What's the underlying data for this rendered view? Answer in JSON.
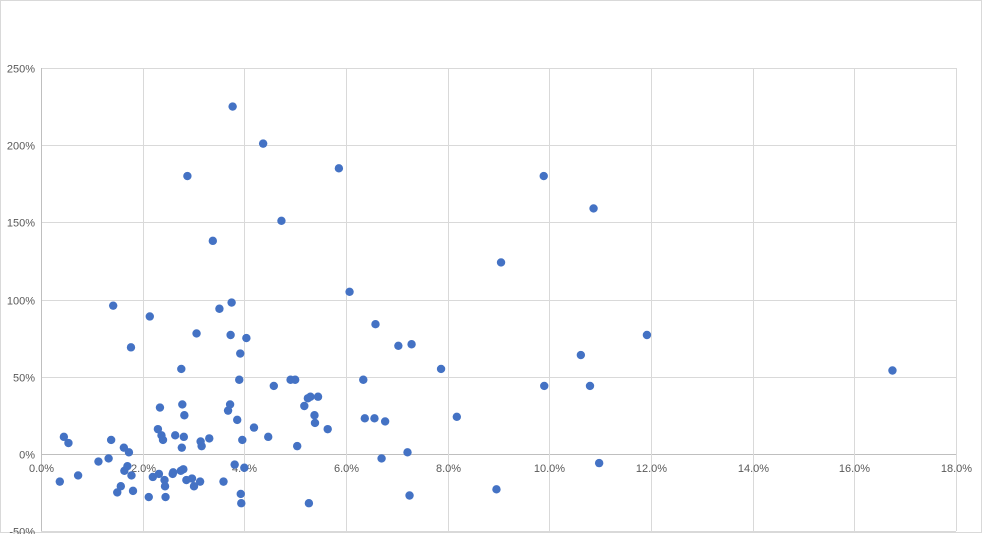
{
  "chart_data": {
    "type": "scatter",
    "title": "",
    "xlabel": "",
    "ylabel": "",
    "xlim": [
      0,
      0.18
    ],
    "ylim": [
      -0.5,
      2.5
    ],
    "x_ticks": [
      0,
      0.02,
      0.04,
      0.06,
      0.08,
      0.1,
      0.12,
      0.14,
      0.16,
      0.18
    ],
    "x_tick_labels": [
      "0.0%",
      "2.0%",
      "4.0%",
      "6.0%",
      "8.0%",
      "10.0%",
      "12.0%",
      "14.0%",
      "16.0%",
      "18.0%"
    ],
    "y_ticks": [
      -0.5,
      0,
      0.5,
      1.0,
      1.5,
      2.0,
      2.5
    ],
    "y_tick_labels": [
      "-50%",
      "0%",
      "50%",
      "100%",
      "150%",
      "200%",
      "250%"
    ],
    "grid": true,
    "legend": "none",
    "marker_color": "#4472c4",
    "series": [
      {
        "points": [
          [
            0.0037,
            -0.18
          ],
          [
            0.0045,
            0.11
          ],
          [
            0.0054,
            0.07
          ],
          [
            0.0073,
            -0.14
          ],
          [
            0.0113,
            -0.05
          ],
          [
            0.0133,
            -0.03
          ],
          [
            0.0138,
            0.09
          ],
          [
            0.0142,
            0.96
          ],
          [
            0.015,
            -0.25
          ],
          [
            0.0157,
            -0.21
          ],
          [
            0.0163,
            0.04
          ],
          [
            0.0164,
            -0.11
          ],
          [
            0.017,
            -0.08
          ],
          [
            0.0173,
            0.01
          ],
          [
            0.0177,
            0.69
          ],
          [
            0.0178,
            -0.14
          ],
          [
            0.0181,
            -0.24
          ],
          [
            0.0212,
            -0.28
          ],
          [
            0.0214,
            0.89
          ],
          [
            0.022,
            -0.15
          ],
          [
            0.023,
            0.16
          ],
          [
            0.0232,
            -0.13
          ],
          [
            0.0234,
            0.3
          ],
          [
            0.0237,
            0.12
          ],
          [
            0.024,
            0.09
          ],
          [
            0.0243,
            -0.17
          ],
          [
            0.0244,
            -0.21
          ],
          [
            0.0245,
            -0.28
          ],
          [
            0.0259,
            -0.13
          ],
          [
            0.026,
            -0.12
          ],
          [
            0.0264,
            0.12
          ],
          [
            0.0275,
            -0.11
          ],
          [
            0.0276,
            0.55
          ],
          [
            0.0277,
            0.04
          ],
          [
            0.0278,
            0.32
          ],
          [
            0.028,
            -0.1
          ],
          [
            0.0281,
            0.11
          ],
          [
            0.0282,
            0.25
          ],
          [
            0.0286,
            -0.17
          ],
          [
            0.0288,
            1.8
          ],
          [
            0.0297,
            -0.16
          ],
          [
            0.0301,
            -0.21
          ],
          [
            0.0306,
            0.78
          ],
          [
            0.0313,
            -0.18
          ],
          [
            0.0314,
            0.08
          ],
          [
            0.0316,
            0.05
          ],
          [
            0.0331,
            0.1
          ],
          [
            0.0338,
            1.38
          ],
          [
            0.0351,
            0.94
          ],
          [
            0.0359,
            -0.18
          ],
          [
            0.0368,
            0.28
          ],
          [
            0.0372,
            0.32
          ],
          [
            0.0373,
            0.77
          ],
          [
            0.0375,
            0.98
          ],
          [
            0.0377,
            2.25
          ],
          [
            0.0381,
            -0.07
          ],
          [
            0.0386,
            0.22
          ],
          [
            0.039,
            0.48
          ],
          [
            0.0392,
            0.65
          ],
          [
            0.0393,
            -0.26
          ],
          [
            0.0394,
            -0.32
          ],
          [
            0.0396,
            0.09
          ],
          [
            0.04,
            -0.09
          ],
          [
            0.0404,
            0.75
          ],
          [
            0.0419,
            0.17
          ],
          [
            0.0437,
            2.01
          ],
          [
            0.0447,
            0.11
          ],
          [
            0.0458,
            0.44
          ],
          [
            0.0473,
            1.51
          ],
          [
            0.0491,
            0.48
          ],
          [
            0.05,
            0.48
          ],
          [
            0.0504,
            0.05
          ],
          [
            0.0518,
            0.31
          ],
          [
            0.0525,
            0.36
          ],
          [
            0.0527,
            -0.32
          ],
          [
            0.053,
            0.37
          ],
          [
            0.0538,
            0.25
          ],
          [
            0.0539,
            0.2
          ],
          [
            0.0545,
            0.37
          ],
          [
            0.0564,
            0.16
          ],
          [
            0.0586,
            1.85
          ],
          [
            0.0607,
            1.05
          ],
          [
            0.0634,
            0.48
          ],
          [
            0.0637,
            0.23
          ],
          [
            0.0656,
            0.23
          ],
          [
            0.0658,
            0.84
          ],
          [
            0.067,
            -0.03
          ],
          [
            0.0677,
            0.21
          ],
          [
            0.0703,
            0.7
          ],
          [
            0.0721,
            0.01
          ],
          [
            0.0725,
            -0.27
          ],
          [
            0.0729,
            0.71
          ],
          [
            0.0787,
            0.55
          ],
          [
            0.0818,
            0.24
          ],
          [
            0.0896,
            -0.23
          ],
          [
            0.0905,
            1.24
          ],
          [
            0.0989,
            1.8
          ],
          [
            0.099,
            0.44
          ],
          [
            0.1062,
            0.64
          ],
          [
            0.108,
            0.44
          ],
          [
            0.1087,
            1.59
          ],
          [
            0.1098,
            -0.06
          ],
          [
            0.1192,
            0.77
          ],
          [
            0.1675,
            0.54
          ]
        ]
      }
    ]
  }
}
